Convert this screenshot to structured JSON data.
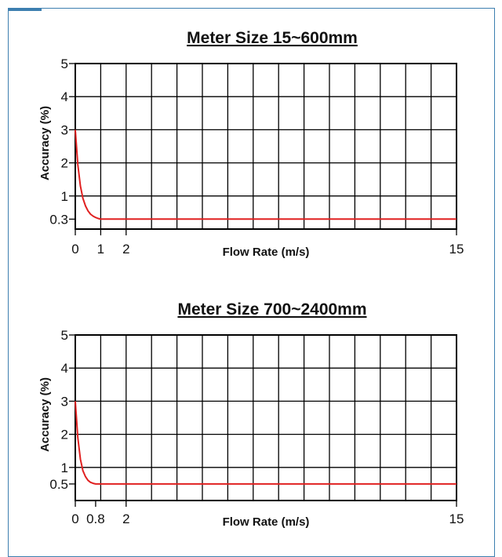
{
  "colors": {
    "curve": "#e02020",
    "grid": "#000000",
    "frame_border": "#3d7fb0"
  },
  "chart_data": [
    {
      "type": "line",
      "title": "Meter Size 15~600mm",
      "xlabel": "Flow Rate (m/s)",
      "ylabel": "Accuracy (%)",
      "xlim": [
        0,
        15
      ],
      "ylim": [
        0,
        5
      ],
      "x_tick_labels": [
        "0",
        "1",
        "2",
        "15"
      ],
      "x_tick_values": [
        0,
        1,
        2,
        15
      ],
      "y_tick_labels": [
        "5",
        "4",
        "3",
        "2",
        "1",
        "0.3"
      ],
      "y_tick_values": [
        5,
        4,
        3,
        2,
        1,
        0.3
      ],
      "grid": true,
      "series": [
        {
          "x": [
            0,
            0.1,
            0.2,
            0.3,
            0.4,
            0.5,
            0.6,
            0.7,
            0.8,
            0.9,
            1,
            2,
            15
          ],
          "values": [
            3.0,
            1.95,
            1.3,
            0.93,
            0.7,
            0.55,
            0.45,
            0.39,
            0.35,
            0.32,
            0.3,
            0.3,
            0.3
          ]
        }
      ]
    },
    {
      "type": "line",
      "title": "Meter Size 700~2400mm",
      "xlabel": "Flow Rate (m/s)",
      "ylabel": "Accuracy (%)",
      "xlim": [
        0,
        15
      ],
      "ylim": [
        0,
        5
      ],
      "x_tick_labels": [
        "0",
        "0.8",
        "2",
        "15"
      ],
      "x_tick_values": [
        0,
        0.8,
        2,
        15
      ],
      "y_tick_labels": [
        "5",
        "4",
        "3",
        "2",
        "1",
        "0.5"
      ],
      "y_tick_values": [
        5,
        4,
        3,
        2,
        1,
        0.5
      ],
      "grid": true,
      "series": [
        {
          "x": [
            0,
            0.1,
            0.2,
            0.3,
            0.4,
            0.5,
            0.6,
            0.7,
            0.8,
            2,
            15
          ],
          "values": [
            3.0,
            1.9,
            1.25,
            0.9,
            0.72,
            0.61,
            0.55,
            0.52,
            0.5,
            0.5,
            0.5
          ]
        }
      ]
    }
  ]
}
